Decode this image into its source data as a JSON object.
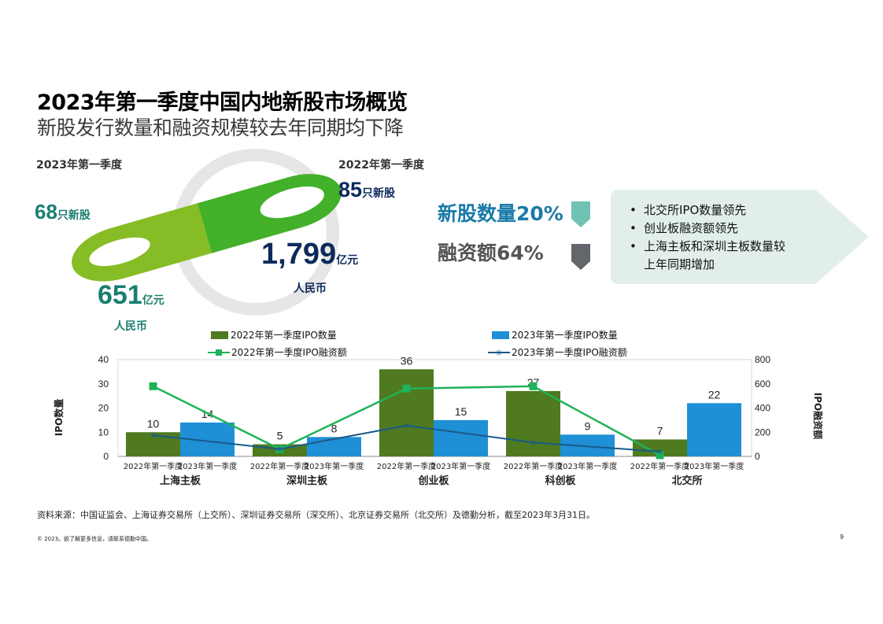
{
  "header": {
    "title": "2023年第一季度中国内地新股市场概览",
    "subtitle": "新股发行数量和融资规模较去年同期均下降"
  },
  "overview": {
    "q2023_label": "2023年第一季度",
    "q2022_label": "2022年第一季度",
    "count_2023": "68",
    "count_2022": "85",
    "count_unit": "只新股",
    "amount_2023": "651",
    "amount_2022": "1,799",
    "amount_unit": "亿元",
    "currency": "人民币",
    "colors": {
      "light_green": "#86bc25",
      "mid_green": "#43b02a",
      "ring": "#e6e6e6"
    }
  },
  "stats": {
    "ipo_count_change": "新股数量20%",
    "amount_change": "融资额64%",
    "colors": {
      "teal_arrow": "#6fc2b4",
      "grey_arrow": "#63666a"
    }
  },
  "highlights": [
    "北交所IPO数量领先",
    "创业板融资额领先",
    "上海主板和深圳主板数量较上年同期增加"
  ],
  "chart_data": {
    "type": "bar",
    "categories": [
      "上海主板",
      "深圳主板",
      "创业板",
      "科创板",
      "北交所"
    ],
    "sublabels": [
      "2022年第一季度",
      "2023年第一季度"
    ],
    "series": [
      {
        "name": "2022年第一季度IPO数量",
        "kind": "bar",
        "axis": "left",
        "color": "#4f7a1f",
        "values": [
          10,
          5,
          36,
          27,
          7
        ]
      },
      {
        "name": "2023年第一季度IPO数量",
        "kind": "bar",
        "axis": "left",
        "color": "#1f8fd6",
        "values": [
          14,
          8,
          15,
          9,
          22
        ]
      },
      {
        "name": "2022年第一季度IPO融资额",
        "kind": "line",
        "axis": "right",
        "color": "#1fb25a",
        "marker": "square",
        "values": [
          580,
          60,
          560,
          580,
          10
        ]
      },
      {
        "name": "2023年第一季度IPO融资额",
        "kind": "line",
        "axis": "right",
        "color": "#1a5a8a",
        "marker": "star",
        "values": [
          175,
          60,
          255,
          115,
          40
        ]
      }
    ],
    "ylabel": "IPO数量",
    "y2label": "IPO融资额",
    "ylim": [
      0,
      40
    ],
    "y2lim": [
      0,
      800
    ],
    "yticks": [
      0,
      10,
      20,
      30,
      40
    ],
    "y2ticks": [
      0,
      200,
      400,
      600,
      800
    ],
    "grid": false,
    "legend": "top"
  },
  "footer": {
    "source": "资料来源：中国证监会、上海证券交易所（上交所）、深圳证券交易所（深交所）、北京证券交易所（北交所）及德勤分析，截至2023年3月31日。",
    "copyright": "© 2023。欲了解更多信息，请联系德勤中国。",
    "page": "9"
  }
}
